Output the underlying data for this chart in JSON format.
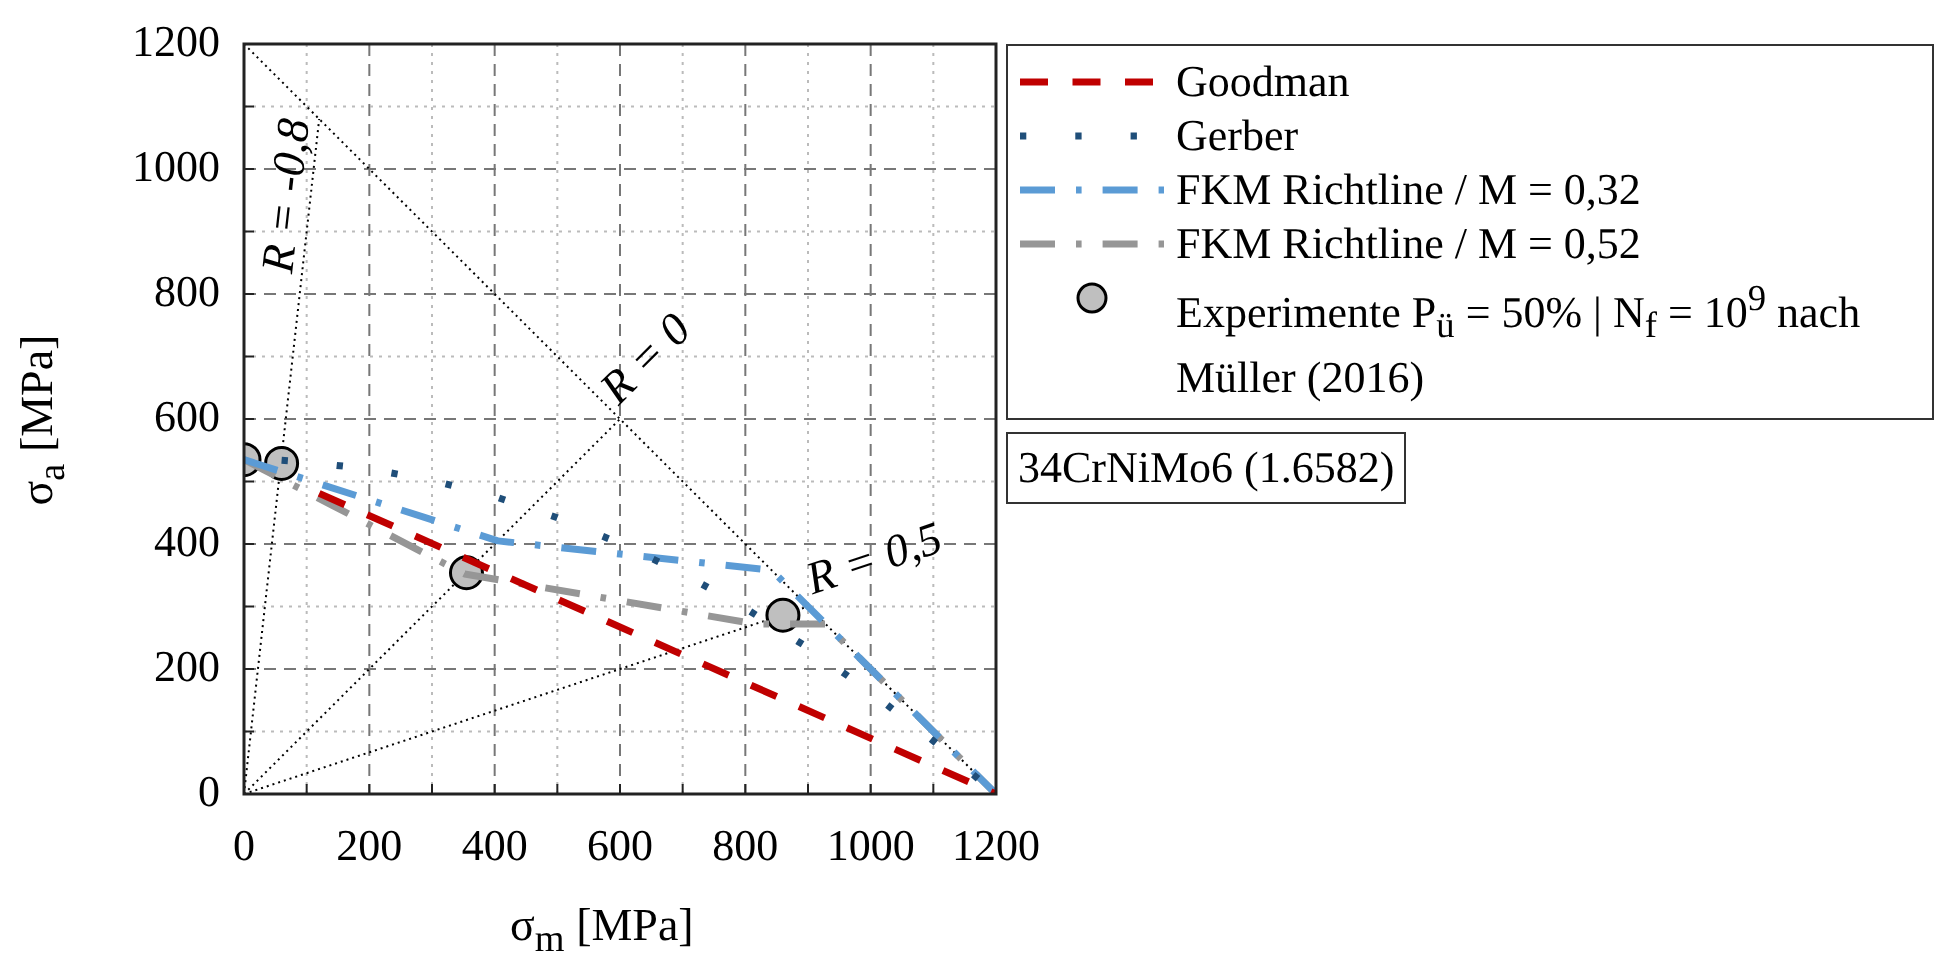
{
  "chart_data": {
    "type": "line",
    "xlabel": "σ$_{m}$ [MPa]",
    "ylabel": "σ$_{a}$ [MPa]",
    "xlim": [
      0,
      1200
    ],
    "ylim": [
      0,
      1200
    ],
    "xticks": [
      0,
      {
        "value": 100,
        "label": null
      },
      200,
      {
        "value": 300,
        "label": null
      },
      400,
      {
        "value": 500,
        "label": null
      },
      600,
      {
        "value": 700,
        "label": null
      },
      800,
      {
        "value": 900,
        "label": null
      },
      1000,
      {
        "value": 1100,
        "label": null
      },
      1200
    ],
    "yticks": [
      0,
      {
        "value": 100,
        "label": null
      },
      200,
      {
        "value": 300,
        "label": null
      },
      400,
      {
        "value": 500,
        "label": null
      },
      600,
      {
        "value": 700,
        "label": null
      },
      800,
      {
        "value": 900,
        "label": null
      },
      1000,
      {
        "value": 1100,
        "label": null
      },
      1200
    ],
    "grid": true,
    "legend": "right",
    "marker": "none",
    "series": [
      {
        "name": "Goodman",
        "color": "#c00000",
        "line_style": "dashed",
        "x": [
          120,
          1200
        ],
        "values": [
          481,
          0
        ]
      },
      {
        "name": "Gerber",
        "color": "#1f4e79",
        "line_style": "dotted",
        "x": [
          60,
          100,
          200,
          300,
          400,
          500,
          600,
          700,
          800,
          900,
          1000,
          1100,
          1200
        ],
        "values": [
          534,
          531,
          520,
          502,
          476,
          442,
          401,
          353,
          297,
          234,
          163,
          85,
          0
        ]
      },
      {
        "name": "FKM Richtline / M = 0,32",
        "color": "#5b9bd5",
        "line_style": "dashdot",
        "x": [
          0,
          405,
          842,
          1200
        ],
        "values": [
          535,
          405,
          358,
          0
        ]
      },
      {
        "name": "FKM Richtline / M = 0,52",
        "color": "#969696",
        "line_style": "dashdot",
        "x": [
          0,
          352,
          816,
          928,
          1200
        ],
        "values": [
          535,
          352,
          272,
          272,
          0
        ]
      },
      {
        "name": "Experimente P$_{ü}$ = 50% | N$_{f}$ = 10$^{9}$ nach Müller (2016)",
        "type": "scatter",
        "marker": "circle",
        "color": "#bfbfbf",
        "x": [
          0,
          60,
          355,
          860
        ],
        "values": [
          535,
          529,
          354,
          286
        ]
      },
      {
        "color": "#000000",
        "line_style": "dotted",
        "x": [
          0,
          120
        ],
        "values": [
          0,
          1080
        ]
      },
      {
        "color": "#000000",
        "line_style": "dotted",
        "x": [
          0,
          600
        ],
        "values": [
          0,
          600
        ]
      },
      {
        "color": "#000000",
        "line_style": "dotted",
        "x": [
          0,
          900
        ],
        "values": [
          0,
          300
        ]
      },
      {
        "color": "#000000",
        "line_style": "dotted",
        "x": [
          0,
          1200
        ],
        "values": [
          1200,
          0
        ]
      }
    ],
    "annotations": [
      {
        "text": "R = -0,8",
        "x": 91,
        "y": 817
      },
      {
        "text": "R = 0",
        "x": 600,
        "y": 600
      },
      {
        "text": "R = 0,5",
        "x": 900,
        "y": 300
      },
      "34CrNiMo6 (1.6582)"
    ]
  }
}
